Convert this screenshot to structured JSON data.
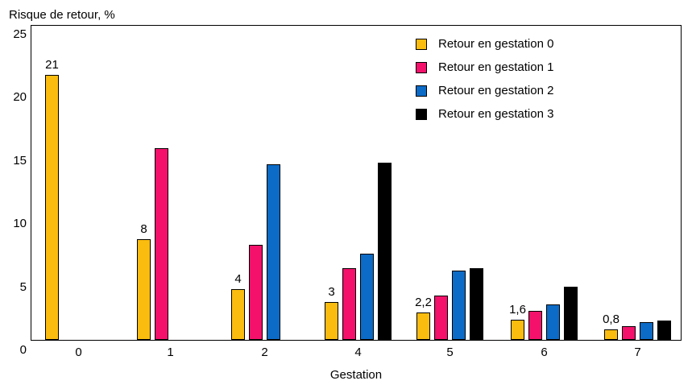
{
  "chart_data": {
    "type": "bar",
    "title": "Risque de retour, %",
    "xlabel": "Gestation",
    "ylabel": "Risque de retour, %",
    "ylim": [
      0,
      25
    ],
    "yticks": [
      0,
      5,
      10,
      15,
      20,
      25
    ],
    "grid": false,
    "legend_position": "top-right-inside",
    "categories": [
      "0",
      "1",
      "2",
      "4",
      "5",
      "6",
      "7"
    ],
    "series": [
      {
        "name": "Retour en gestation 0",
        "color": "#FBBC10",
        "values": [
          21,
          8,
          4,
          3,
          2.2,
          1.6,
          0.8
        ],
        "data_labels": [
          "21",
          "8",
          "4",
          "3",
          "2,2",
          "1,6",
          "0,8"
        ]
      },
      {
        "name": "Retour en gestation 1",
        "color": "#F3116B",
        "values": [
          null,
          15.2,
          7.5,
          5.7,
          3.5,
          2.3,
          1.1
        ],
        "data_labels": [
          null,
          null,
          null,
          null,
          null,
          null,
          null
        ]
      },
      {
        "name": "Retour en gestation 2",
        "color": "#0C6BC6",
        "values": [
          null,
          null,
          13.9,
          6.8,
          5.5,
          2.8,
          1.4
        ],
        "data_labels": [
          null,
          null,
          null,
          null,
          null,
          null,
          null
        ]
      },
      {
        "name": "Retour en gestation 3",
        "color": "#000000",
        "values": [
          null,
          null,
          null,
          14.0,
          5.7,
          4.2,
          1.5
        ],
        "data_labels": [
          null,
          null,
          null,
          null,
          null,
          null,
          null
        ]
      }
    ]
  }
}
